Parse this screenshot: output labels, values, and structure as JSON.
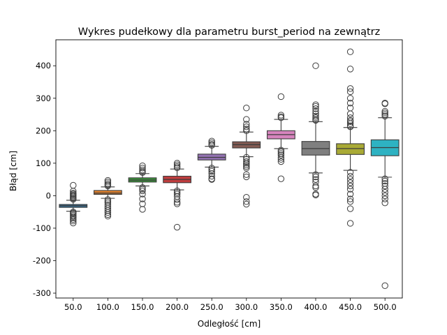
{
  "chart_data": {
    "type": "box",
    "title": "Wykres pudełkowy dla parametru burst_period na zewnątrz",
    "xlabel": "Odległość [cm]",
    "ylabel": "Błąd [cm]",
    "ylim": [
      -315,
      480
    ],
    "yticks": [
      -300,
      -200,
      -100,
      0,
      100,
      200,
      300,
      400
    ],
    "categories": [
      "50.0",
      "100.0",
      "150.0",
      "200.0",
      "250.0",
      "300.0",
      "350.0",
      "400.0",
      "450.0",
      "500.0"
    ],
    "boxes": [
      {
        "q1": -36,
        "median": -31,
        "q3": -27,
        "whisker_low": -48,
        "whisker_high": -14,
        "color": "#3274a1",
        "outliers": [
          32,
          14,
          8,
          5,
          2,
          -1,
          -4,
          -8,
          -11,
          -50,
          -53,
          -56,
          -60,
          -64,
          -68,
          -73,
          -78,
          -84
        ]
      },
      {
        "q1": 4,
        "median": 8,
        "q3": 16,
        "whisker_low": -8,
        "whisker_high": 27,
        "color": "#e1812c",
        "outliers": [
          47,
          42,
          37,
          33,
          30,
          -12,
          -17,
          -22,
          -28,
          -34,
          -40,
          -46,
          -52,
          -58,
          -63
        ]
      },
      {
        "q1": 42,
        "median": 48,
        "q3": 55,
        "whisker_low": 30,
        "whisker_high": 68,
        "color": "#3a923a",
        "outliers": [
          92,
          85,
          79,
          74,
          71,
          25,
          20,
          15,
          5,
          -10,
          -25,
          -42
        ]
      },
      {
        "q1": 40,
        "median": 50,
        "q3": 60,
        "whisker_low": 18,
        "whisker_high": 82,
        "color": "#c03d3e",
        "outliers": [
          100,
          95,
          90,
          86,
          15,
          10,
          5,
          -2,
          -12,
          -20,
          -25,
          -97
        ]
      },
      {
        "q1": 110,
        "median": 118,
        "q3": 128,
        "whisker_low": 88,
        "whisker_high": 152,
        "color": "#9372b2",
        "outliers": [
          168,
          163,
          158,
          155,
          85,
          80,
          75,
          68,
          60,
          52,
          50
        ]
      },
      {
        "q1": 147,
        "median": 157,
        "q3": 166,
        "whisker_low": 120,
        "whisker_high": 196,
        "color": "#845b53",
        "outliers": [
          270,
          235,
          220,
          212,
          205,
          200,
          118,
          112,
          105,
          100,
          95,
          90,
          85,
          65,
          58,
          -5,
          -18,
          -26
        ]
      },
      {
        "q1": 175,
        "median": 188,
        "q3": 200,
        "whisker_low": 145,
        "whisker_high": 235,
        "color": "#d684bd",
        "outliers": [
          305,
          248,
          243,
          240,
          140,
          135,
          130,
          125,
          118,
          112,
          105,
          52
        ]
      },
      {
        "q1": 125,
        "median": 145,
        "q3": 167,
        "whisker_low": 70,
        "whisker_high": 228,
        "color": "#7f7f7f",
        "outliers": [
          400,
          280,
          275,
          268,
          260,
          252,
          245,
          240,
          235,
          232,
          65,
          58,
          50,
          42,
          30,
          25,
          5,
          2
        ]
      },
      {
        "q1": 127,
        "median": 145,
        "q3": 160,
        "whisker_low": 78,
        "whisker_high": 210,
        "color": "#a9aa35",
        "outliers": [
          443,
          390,
          330,
          320,
          300,
          285,
          270,
          252,
          240,
          232,
          228,
          222,
          215,
          212,
          72,
          60,
          50,
          40,
          30,
          20,
          5,
          -10,
          -18,
          -40,
          -85
        ]
      },
      {
        "q1": 123,
        "median": 148,
        "q3": 172,
        "whisker_low": 57,
        "whisker_high": 240,
        "color": "#2eb2c2",
        "outliers": [
          285,
          283,
          260,
          255,
          250,
          245,
          52,
          45,
          38,
          30,
          20,
          10,
          0,
          -10,
          -22,
          -277
        ]
      }
    ]
  }
}
